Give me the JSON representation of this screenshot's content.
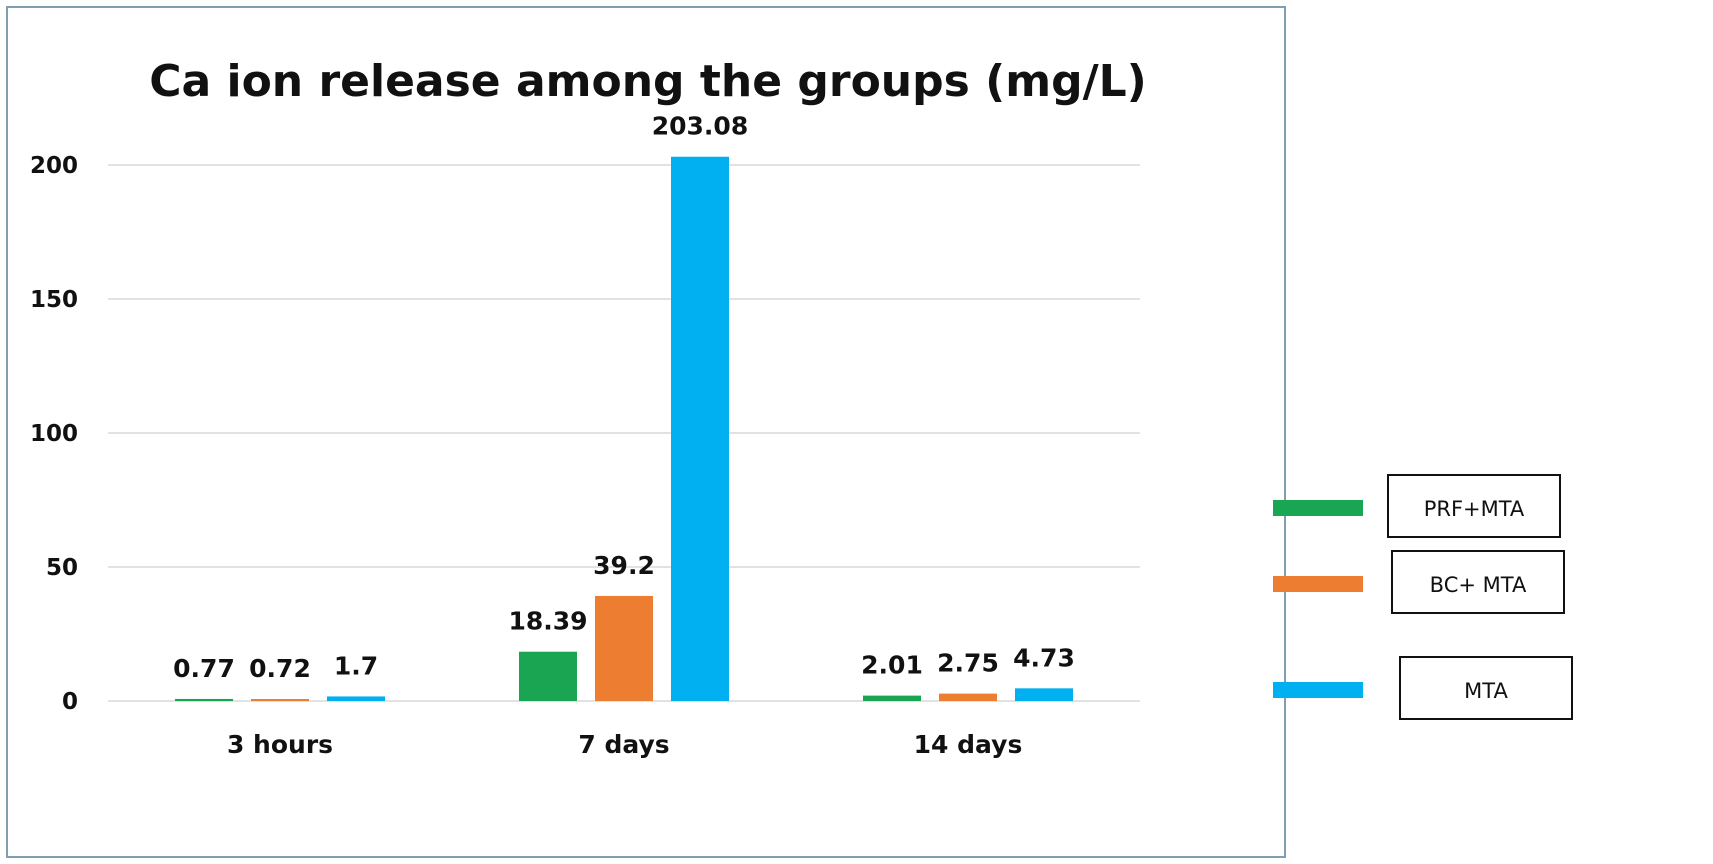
{
  "chart_data": {
    "type": "bar",
    "title": "Ca ion release among the groups  (mg/L)",
    "xlabel": "",
    "ylabel": "",
    "categories": [
      "3 hours",
      "7 days",
      "14 days"
    ],
    "series": [
      {
        "name": "PRF+MTA",
        "color": "#1aa552",
        "values": [
          0.77,
          18.39,
          2.01
        ],
        "labels": [
          "0.77",
          "18.39",
          "2.01"
        ]
      },
      {
        "name": "BC+ MTA",
        "color": "#ed7d31",
        "values": [
          0.72,
          39.2,
          2.75
        ],
        "labels": [
          "0.72",
          "39.2",
          "2.75"
        ]
      },
      {
        "name": "MTA",
        "color": "#00b0f0",
        "values": [
          1.7,
          203.08,
          4.73
        ],
        "labels": [
          "1.7",
          "203.08",
          "4.73"
        ]
      }
    ],
    "ylim": [
      0,
      200
    ],
    "yticks": [
      "0",
      "50",
      "100",
      "150",
      "200"
    ],
    "ytick_values": [
      0,
      50,
      100,
      150,
      200
    ],
    "grid": true,
    "legend_position": "right"
  }
}
